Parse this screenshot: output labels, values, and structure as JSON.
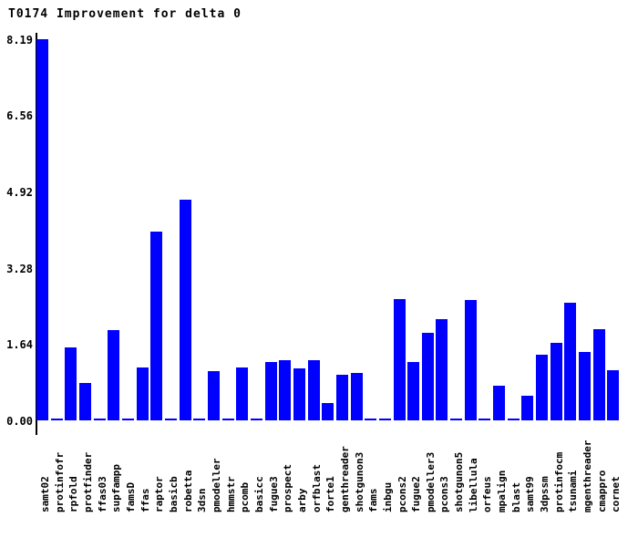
{
  "title": "T0174 Improvement for delta 0",
  "chart_data": {
    "type": "bar",
    "title": "T0174 Improvement for delta 0",
    "xlabel": "",
    "ylabel": "",
    "grid": "off",
    "legend": "none",
    "x_labels_rotated": true,
    "bar_color": "#0000ff",
    "axis_color": "#000000",
    "background_color": "#ffffff",
    "ylim": [
      0,
      8.19
    ],
    "ytick_labels": [
      "0.00",
      "1.64",
      "3.28",
      "4.92",
      "6.56",
      "8.19"
    ],
    "yticks": [
      0.0,
      1.64,
      3.28,
      4.92,
      6.56,
      8.19
    ],
    "categories": [
      "samt02",
      "protinfofr",
      "rpfold",
      "protfinder",
      "ffas03",
      "supfampp",
      "famsD",
      "ffas",
      "raptor",
      "basicb",
      "robetta",
      "3dsn",
      "pmodeller",
      "hmmstr",
      "pcomb",
      "basicc",
      "fugue3",
      "prospect",
      "arby",
      "orfblast",
      "forte1",
      "genthreader",
      "shotgunon3",
      "fams",
      "inbgu",
      "pcons2",
      "fugue2",
      "pmodeller3",
      "pcons3",
      "shotgunon5",
      "libellula",
      "orfeus",
      "mpalign",
      "blast",
      "samt99",
      "3dpssm",
      "protinfocm",
      "tsunami",
      "mgenthreader",
      "cmappro",
      "cornet"
    ],
    "values": [
      8.19,
      0.02,
      1.57,
      0.8,
      0.02,
      1.94,
      0.02,
      1.14,
      4.06,
      0.02,
      4.74,
      0.02,
      1.06,
      0.02,
      1.14,
      0.02,
      1.25,
      1.29,
      1.12,
      1.29,
      0.37,
      0.98,
      1.02,
      0.02,
      0.02,
      2.61,
      1.25,
      1.88,
      2.17,
      0.02,
      2.59,
      0.02,
      0.75,
      0.02,
      0.53,
      1.41,
      1.67,
      2.53,
      1.47,
      1.96,
      1.07
    ]
  }
}
